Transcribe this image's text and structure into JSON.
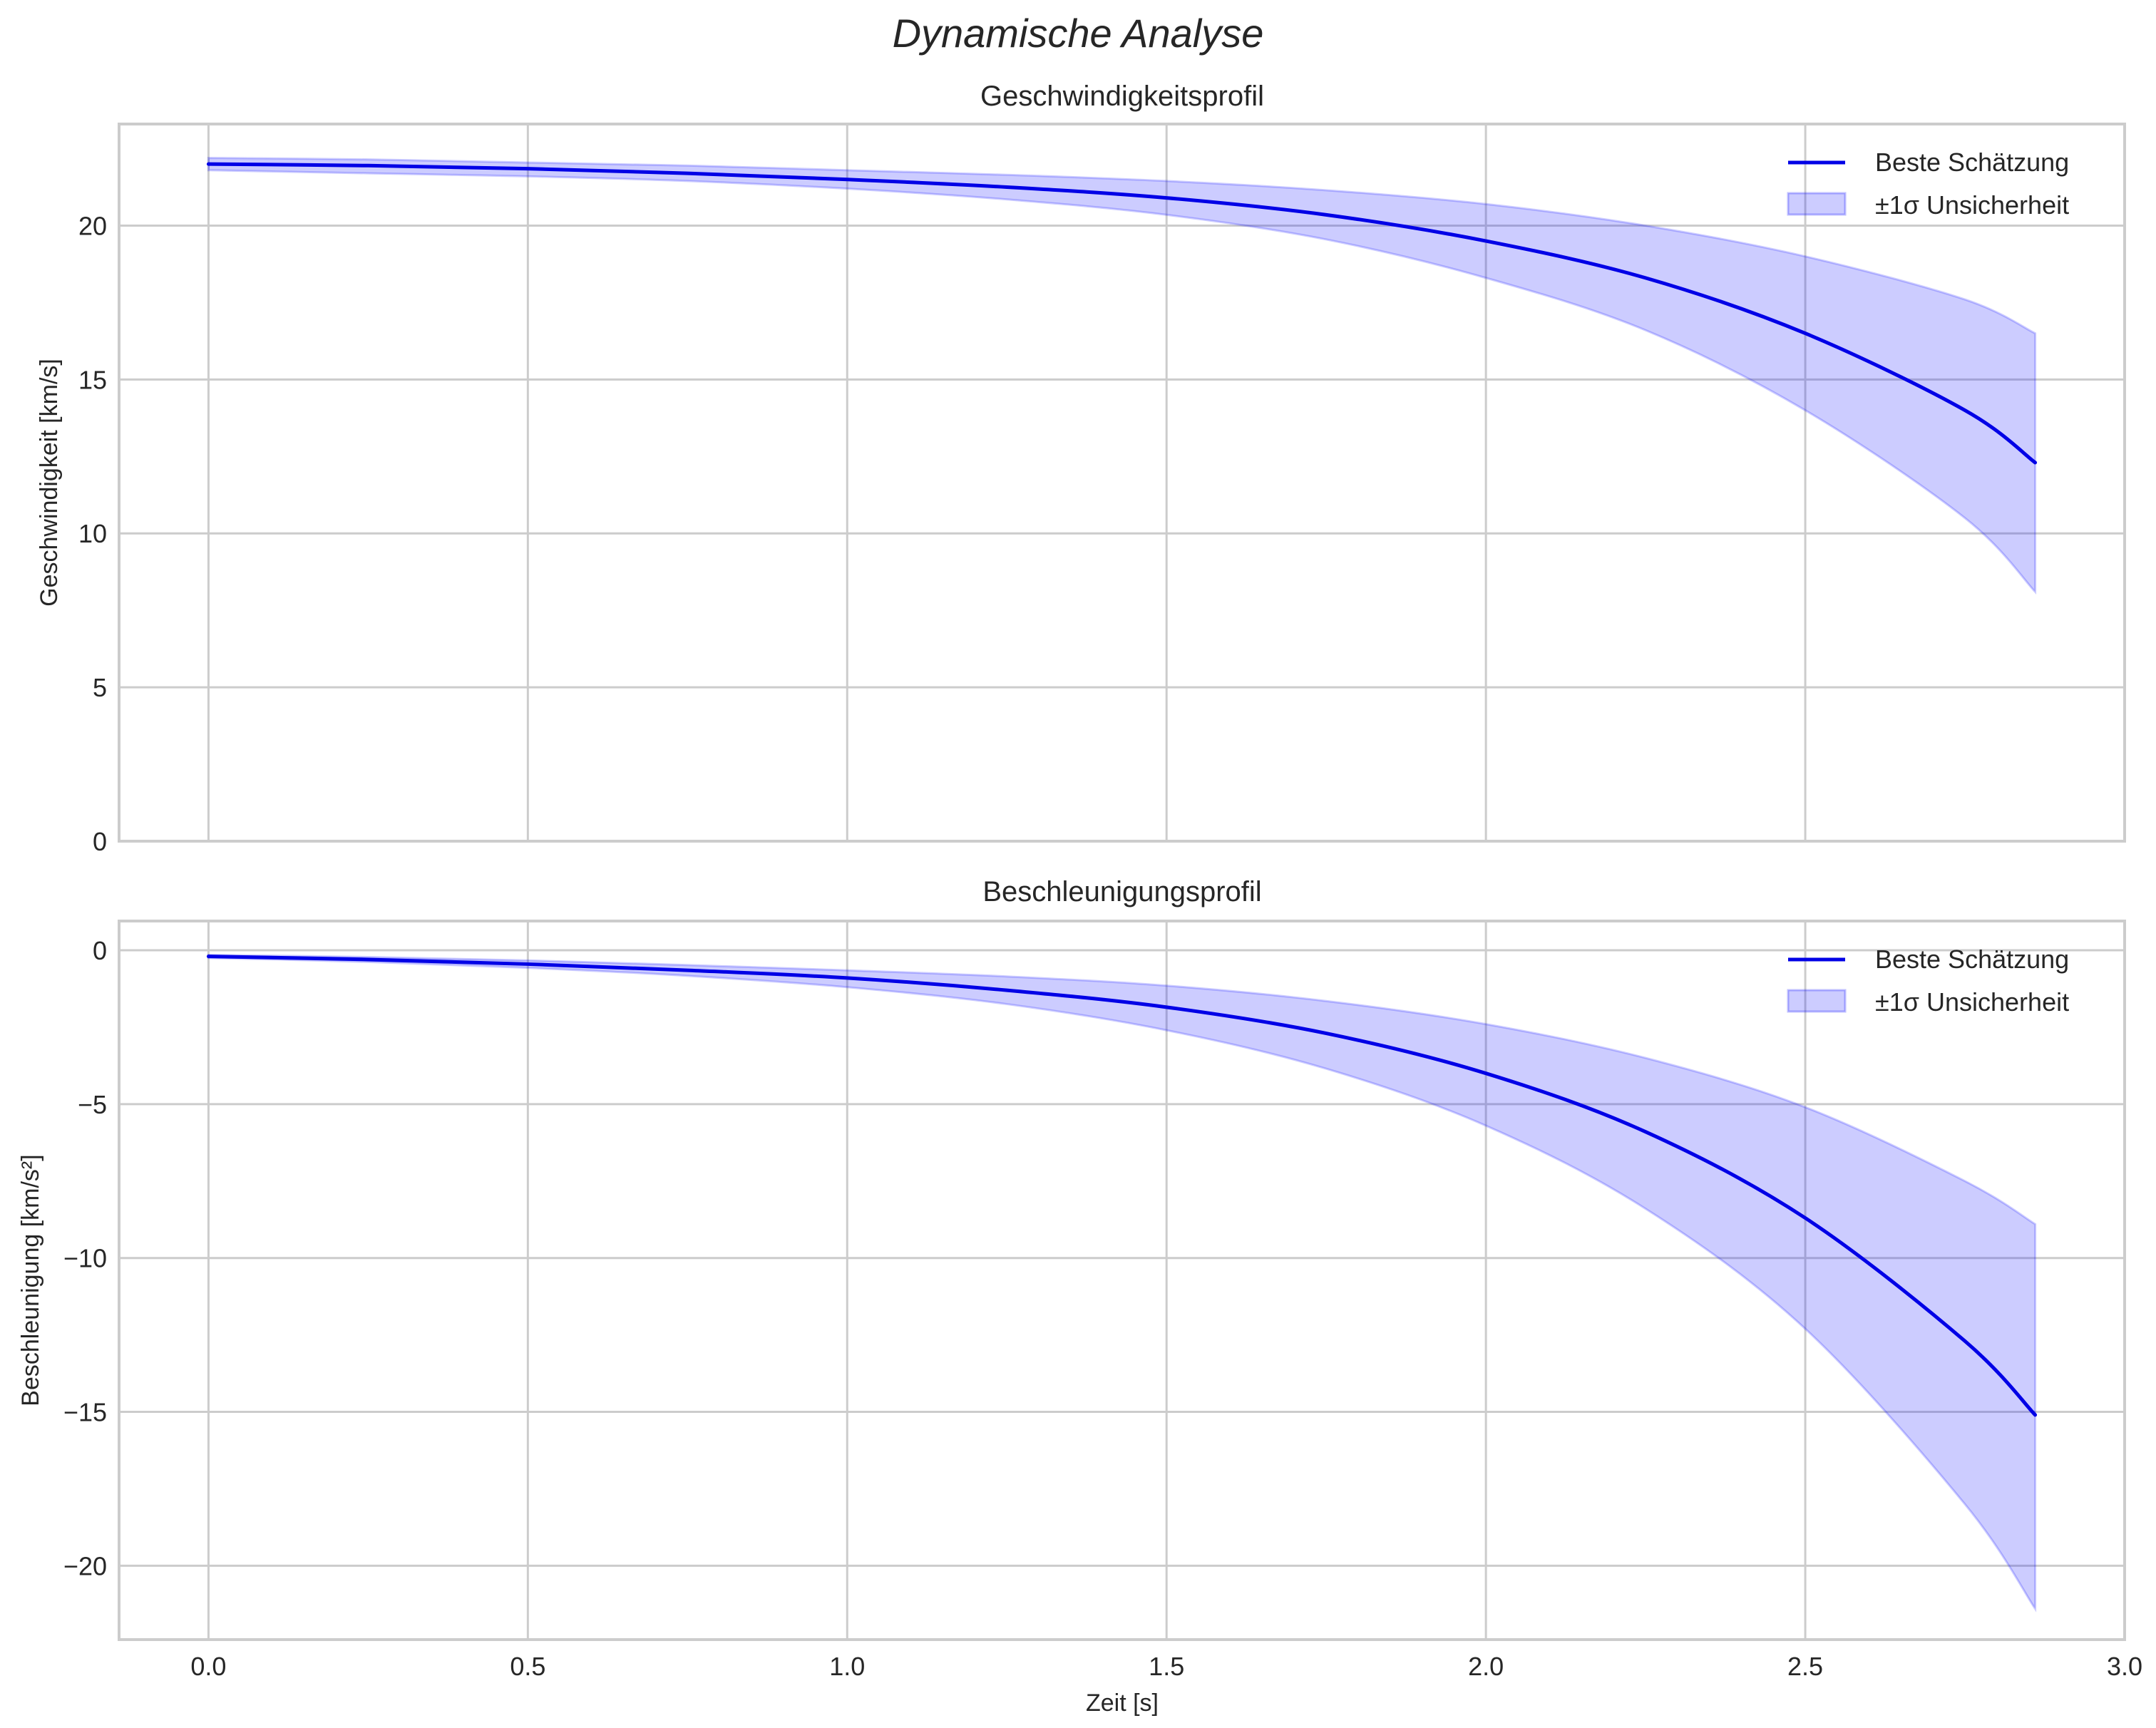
{
  "figure": {
    "title": "Dynamische Analyse",
    "xlabel": "Zeit [s]",
    "xticks": [
      "0.0",
      "0.5",
      "1.0",
      "1.5",
      "2.0",
      "2.5",
      "3.0"
    ],
    "colors": {
      "line": "#0000e6",
      "band": "#0000ff",
      "band_alpha": 0.2,
      "grid": "#cccccc",
      "spine": "#cccccc",
      "text": "#262626"
    }
  },
  "chart_data": [
    {
      "type": "line",
      "title": "Geschwindigkeitsprofil",
      "xlabel": "",
      "ylabel": "Geschwindigkeit [km/s]",
      "xlim": [
        -0.14,
        3.0
      ],
      "ylim": [
        0,
        23.3
      ],
      "yticks": [
        "0",
        "5",
        "10",
        "15",
        "20"
      ],
      "ytick_values": [
        0,
        5,
        10,
        15,
        20
      ],
      "grid": true,
      "legend_position": "upper right",
      "legend": [
        "Beste Schätzung",
        "±1σ Unsicherheit"
      ],
      "x": [
        0.0,
        0.25,
        0.5,
        0.75,
        1.0,
        1.25,
        1.5,
        1.75,
        2.0,
        2.25,
        2.5,
        2.75,
        2.86
      ],
      "series": [
        {
          "name": "Beste Schätzung",
          "values": [
            22.0,
            21.95,
            21.85,
            21.7,
            21.5,
            21.25,
            20.9,
            20.35,
            19.5,
            18.3,
            16.5,
            14.0,
            12.3
          ]
        },
        {
          "name": "±1σ Unsicherheit (obere Grenze)",
          "values": [
            22.2,
            22.15,
            22.05,
            21.95,
            21.8,
            21.65,
            21.45,
            21.15,
            20.7,
            20.0,
            19.0,
            17.6,
            16.5
          ]
        },
        {
          "name": "±1σ Unsicherheit (untere Grenze)",
          "values": [
            21.8,
            21.7,
            21.6,
            21.45,
            21.2,
            20.85,
            20.35,
            19.55,
            18.3,
            16.6,
            14.0,
            10.5,
            8.1
          ]
        }
      ]
    },
    {
      "type": "line",
      "title": "Beschleunigungsprofil",
      "xlabel": "Zeit [s]",
      "ylabel": "Beschleunigung [km/s²]",
      "xlim": [
        -0.14,
        3.0
      ],
      "ylim": [
        -22.4,
        0.95
      ],
      "yticks": [
        "0",
        "−5",
        "−10",
        "−15",
        "−20"
      ],
      "ytick_values": [
        0,
        -5,
        -10,
        -15,
        -20
      ],
      "grid": true,
      "legend_position": "upper right",
      "legend": [
        "Beste Schätzung",
        "±1σ Unsicherheit"
      ],
      "x": [
        0.0,
        0.25,
        0.5,
        0.75,
        1.0,
        1.25,
        1.5,
        1.75,
        2.0,
        2.25,
        2.5,
        2.75,
        2.86
      ],
      "series": [
        {
          "name": "Beste Schätzung",
          "values": [
            -0.2,
            -0.3,
            -0.45,
            -0.65,
            -0.9,
            -1.3,
            -1.85,
            -2.7,
            -4.0,
            -5.9,
            -8.7,
            -12.7,
            -15.1
          ]
        },
        {
          "name": "±1σ Unsicherheit (obere Grenze)",
          "values": [
            -0.15,
            -0.22,
            -0.33,
            -0.48,
            -0.65,
            -0.85,
            -1.15,
            -1.65,
            -2.4,
            -3.5,
            -5.1,
            -7.5,
            -8.9
          ]
        },
        {
          "name": "±1σ Unsicherheit (untere Grenze)",
          "values": [
            -0.25,
            -0.38,
            -0.57,
            -0.83,
            -1.2,
            -1.75,
            -2.6,
            -3.85,
            -5.7,
            -8.4,
            -12.3,
            -18.0,
            -21.4
          ]
        }
      ]
    }
  ]
}
